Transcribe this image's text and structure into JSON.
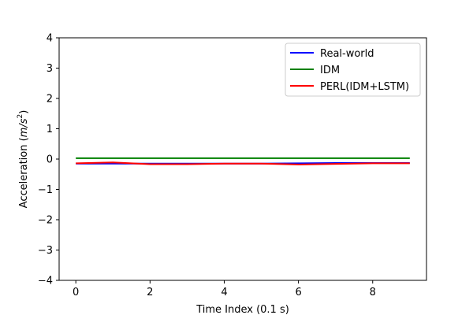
{
  "chart_data": {
    "type": "line",
    "xlabel": "Time Index (0.1 s)",
    "ylabel_main": "Acceleration (",
    "ylabel_unit": "m/s",
    "ylabel_exp": "2",
    "ylabel_close": ")",
    "xlim": [
      -0.45,
      9.45
    ],
    "ylim": [
      -4,
      4
    ],
    "xticks": [
      0,
      2,
      4,
      6,
      8
    ],
    "yticks": [
      -4,
      -3,
      -2,
      -1,
      0,
      1,
      2,
      3,
      4
    ],
    "legend_position": "top-right",
    "x": [
      0,
      1,
      2,
      3,
      4,
      5,
      6,
      7,
      8,
      9
    ],
    "series": [
      {
        "name": "Real-world",
        "color": "#0000ff",
        "values": [
          -0.15,
          -0.15,
          -0.15,
          -0.15,
          -0.15,
          -0.15,
          -0.14,
          -0.13,
          -0.13,
          -0.13
        ]
      },
      {
        "name": "IDM",
        "color": "#008000",
        "values": [
          0.03,
          0.03,
          0.03,
          0.03,
          0.03,
          0.03,
          0.03,
          0.03,
          0.03,
          0.03
        ]
      },
      {
        "name": "PERL(IDM+LSTM)",
        "color": "#ff0000",
        "values": [
          -0.14,
          -0.11,
          -0.17,
          -0.17,
          -0.15,
          -0.15,
          -0.18,
          -0.16,
          -0.14,
          -0.14
        ]
      }
    ]
  }
}
